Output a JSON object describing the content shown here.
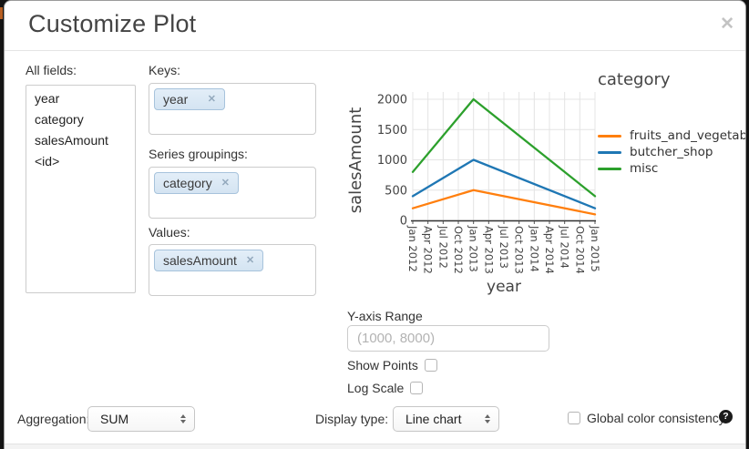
{
  "dialog": {
    "title": "Customize Plot",
    "close_glyph": "✕"
  },
  "fields_panel": {
    "label": "All fields:",
    "items": [
      "year",
      "category",
      "salesAmount",
      "<id>"
    ]
  },
  "selectors": {
    "keys": {
      "label": "Keys:",
      "tags": [
        "year"
      ],
      "remove_glyph": "✕"
    },
    "series_groupings": {
      "label": "Series groupings:",
      "tags": [
        "category"
      ],
      "remove_glyph": "✕"
    },
    "values": {
      "label": "Values:",
      "tags": [
        "salesAmount"
      ],
      "remove_glyph": "✕"
    }
  },
  "chart_data": {
    "type": "line",
    "xlabel": "year",
    "ylabel": "salesAmount",
    "legend_title": "category",
    "legend_position": "right",
    "grid": true,
    "x_ticks": [
      "Jan 2012",
      "Apr 2012",
      "Jul 2012",
      "Oct 2012",
      "Jan 2013",
      "Apr 2013",
      "Jul 2013",
      "Oct 2013",
      "Jan 2014",
      "Apr 2014",
      "Jul 2014",
      "Oct 2014",
      "Jan 2015"
    ],
    "y_ticks": [
      0,
      500,
      1000,
      1500,
      2000
    ],
    "ylim": [
      0,
      2000
    ],
    "series": [
      {
        "name": "fruits_and_vegetables",
        "color": "#ff7f0e",
        "points": [
          [
            "Jan 2012",
            200
          ],
          [
            "Jan 2013",
            500
          ],
          [
            "Jan 2015",
            100
          ]
        ]
      },
      {
        "name": "butcher_shop",
        "color": "#1f77b4",
        "points": [
          [
            "Jan 2012",
            400
          ],
          [
            "Jan 2013",
            1000
          ],
          [
            "Jan 2015",
            200
          ]
        ]
      },
      {
        "name": "misc",
        "color": "#2ca02c",
        "points": [
          [
            "Jan 2012",
            800
          ],
          [
            "Jan 2013",
            2000
          ],
          [
            "Jan 2015",
            400
          ]
        ]
      }
    ]
  },
  "y_axis_range": {
    "label": "Y-axis Range",
    "value": "",
    "placeholder": "(1000, 8000)"
  },
  "options": {
    "show_points": {
      "label": "Show Points",
      "checked": false
    },
    "log_scale": {
      "label": "Log Scale",
      "checked": false
    }
  },
  "footer_controls": {
    "aggregation": {
      "label": "Aggregation:",
      "selected": "SUM"
    },
    "display_type": {
      "label": "Display type:",
      "selected": "Line chart"
    },
    "global_color": {
      "label": "Global color consistency",
      "checked": false,
      "help_glyph": "?"
    }
  }
}
